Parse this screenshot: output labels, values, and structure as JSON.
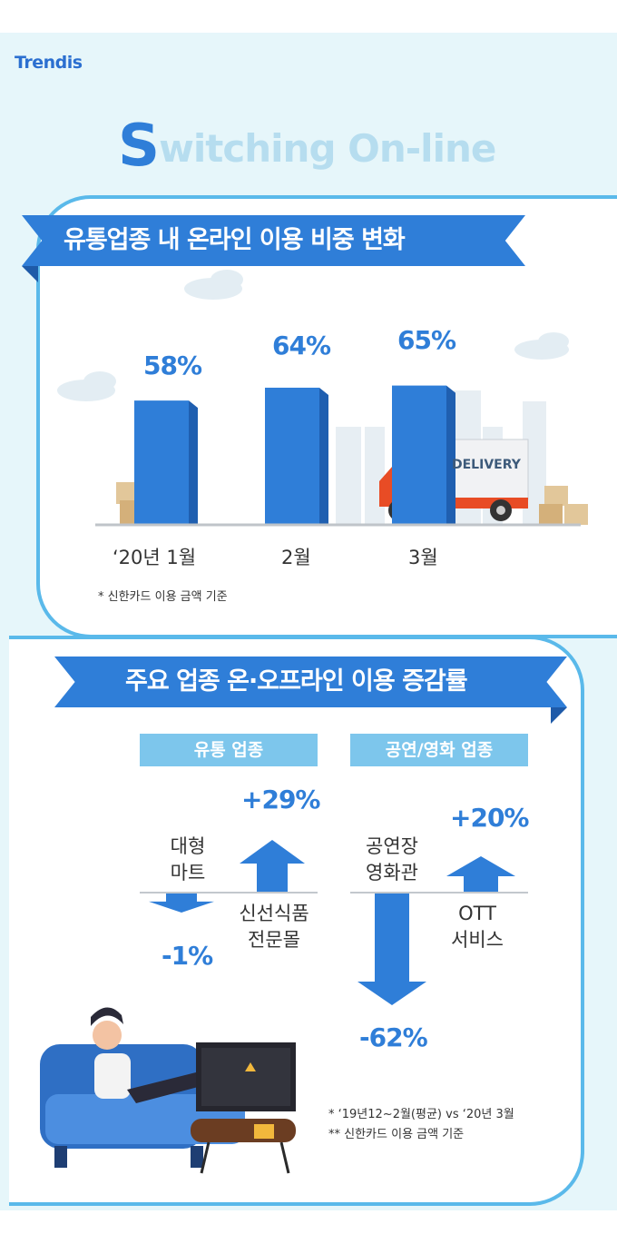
{
  "brand": {
    "logo_text": "Trendis"
  },
  "headline": {
    "initial": "S",
    "rest": "witching On-line"
  },
  "chart_data": [
    {
      "type": "bar",
      "title": "유통업종 내 온라인 이용 비중 변화",
      "categories": [
        "‘20년 1월",
        "2월",
        "3월"
      ],
      "values": [
        58,
        64,
        65
      ],
      "value_labels": [
        "58%",
        "64%",
        "65%"
      ],
      "unit": "%",
      "note": "* 신한카드 이용 금액 기준",
      "bar_color": "#2f7ed8",
      "decoration": {
        "truck_text": "DELIVERY"
      }
    },
    {
      "type": "bar",
      "title": "주요 업종 온·오프라인 이용 증감률",
      "groups": [
        {
          "name": "유통 업종",
          "items": [
            {
              "label": "대형\n마트",
              "value": -1,
              "value_label": "-1%"
            },
            {
              "label": "신선식품\n전문몰",
              "value": 29,
              "value_label": "+29%"
            }
          ]
        },
        {
          "name": "공연/영화 업종",
          "items": [
            {
              "label": "공연장\n영화관",
              "value": -62,
              "value_label": "-62%"
            },
            {
              "label": "OTT\n서비스",
              "value": 20,
              "value_label": "+20%"
            }
          ]
        }
      ],
      "unit": "%",
      "notes": [
        "* ‘19년12~2월(평균) vs ‘20년 3월",
        "** 신한카드 이용 금액 기준"
      ],
      "arrow_color": "#2f7ed8"
    }
  ]
}
